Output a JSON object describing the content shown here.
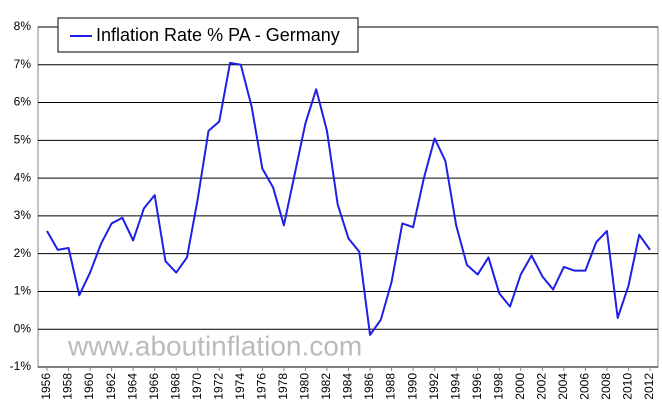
{
  "chart_data": {
    "type": "line",
    "legend_title": null,
    "watermark": "www.aboutinflation.com",
    "x": [
      1956,
      1957,
      1958,
      1959,
      1960,
      1961,
      1962,
      1963,
      1964,
      1965,
      1966,
      1967,
      1968,
      1969,
      1970,
      1971,
      1972,
      1973,
      1974,
      1975,
      1976,
      1977,
      1978,
      1979,
      1980,
      1981,
      1982,
      1983,
      1984,
      1985,
      1986,
      1987,
      1988,
      1989,
      1990,
      1991,
      1992,
      1993,
      1994,
      1995,
      1996,
      1997,
      1998,
      1999,
      2000,
      2001,
      2002,
      2003,
      2004,
      2005,
      2006,
      2007,
      2008,
      2009,
      2010,
      2011,
      2012
    ],
    "series": [
      {
        "name": "Inflation Rate % PA - Germany",
        "color": "#1f1fe6",
        "values": [
          2.6,
          2.1,
          2.15,
          0.9,
          1.5,
          2.25,
          2.8,
          2.95,
          2.35,
          3.2,
          3.55,
          1.8,
          1.5,
          1.9,
          3.45,
          5.25,
          5.5,
          7.05,
          7.0,
          5.9,
          4.25,
          3.75,
          2.75,
          4.1,
          5.45,
          6.35,
          5.25,
          3.3,
          2.4,
          2.05,
          -0.15,
          0.25,
          1.25,
          2.8,
          2.7,
          4.0,
          5.05,
          4.45,
          2.75,
          1.7,
          1.45,
          1.9,
          0.95,
          0.6,
          1.45,
          1.95,
          1.4,
          1.05,
          1.65,
          1.55,
          1.55,
          2.3,
          2.6,
          0.3,
          1.15,
          2.5,
          2.1
        ]
      }
    ],
    "xlim": [
      1956,
      2012
    ],
    "xticks": [
      1956,
      1958,
      1960,
      1962,
      1964,
      1966,
      1968,
      1970,
      1972,
      1974,
      1976,
      1978,
      1980,
      1982,
      1984,
      1986,
      1988,
      1990,
      1992,
      1994,
      1996,
      1998,
      2000,
      2002,
      2004,
      2006,
      2008,
      2010,
      2012
    ],
    "ylim": [
      -1,
      8
    ],
    "yticks": [
      {
        "value": -1,
        "label": "-1%"
      },
      {
        "value": 0,
        "label": "0%"
      },
      {
        "value": 1,
        "label": "1%"
      },
      {
        "value": 2,
        "label": "2%"
      },
      {
        "value": 3,
        "label": "3%"
      },
      {
        "value": 4,
        "label": "4%"
      },
      {
        "value": 5,
        "label": "5%"
      },
      {
        "value": 6,
        "label": "6%"
      },
      {
        "value": 7,
        "label": "7%"
      },
      {
        "value": 8,
        "label": "8%"
      }
    ],
    "grid": true
  }
}
